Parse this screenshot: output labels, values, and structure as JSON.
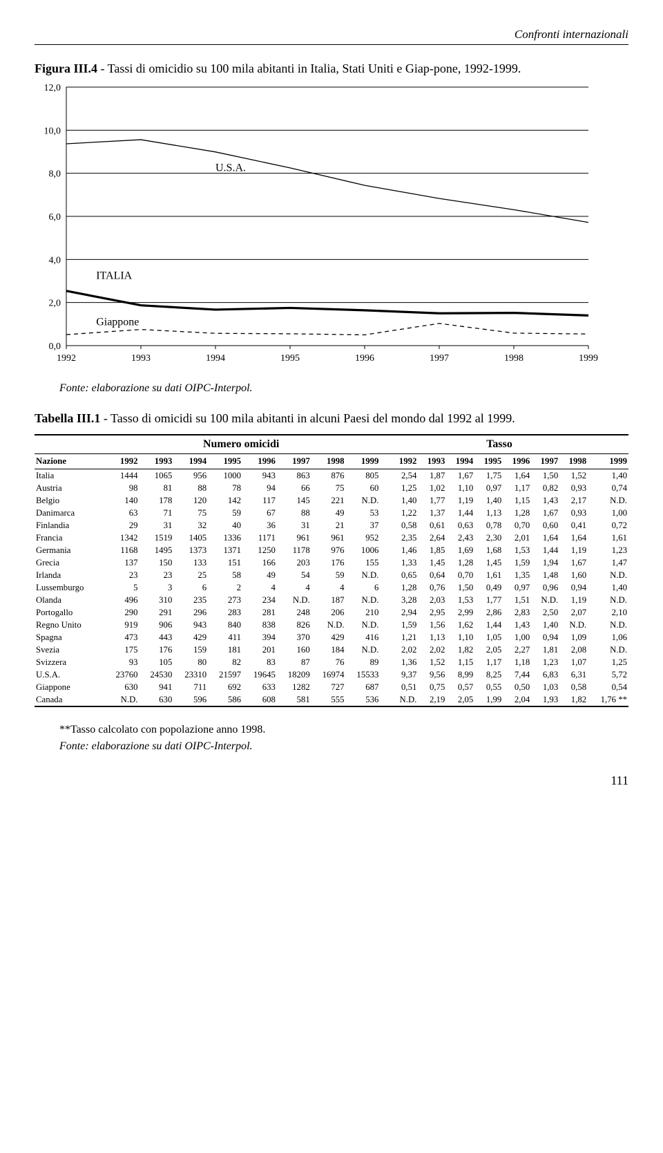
{
  "header": {
    "section": "Confronti internazionali"
  },
  "figure": {
    "label": "Figura III.4",
    "title_rest": " - Tassi di omicidio su 100 mila abitanti in Italia, Stati Uniti e Giap-pone, 1992-1999.",
    "caption": "Fonte: elaborazione su dati OIPC-Interpol.",
    "chart": {
      "type": "line",
      "years": [
        1992,
        1993,
        1994,
        1995,
        1996,
        1997,
        1998,
        1999
      ],
      "ylim": [
        0,
        12
      ],
      "ytick_step": 2,
      "ylabels": [
        "0,0",
        "2,0",
        "4,0",
        "6,0",
        "8,0",
        "10,0",
        "12,0"
      ],
      "series": [
        {
          "name": "U.S.A.",
          "label_x": 2,
          "label_y": 8.1,
          "values": [
            9.37,
            9.56,
            8.99,
            8.25,
            7.44,
            6.83,
            6.31,
            5.72
          ],
          "stroke": "#000000",
          "width": 1.3,
          "dash": ""
        },
        {
          "name": "ITALIA",
          "label_x": 0.4,
          "label_y": 3.1,
          "values": [
            2.54,
            1.87,
            1.67,
            1.75,
            1.64,
            1.5,
            1.52,
            1.4
          ],
          "stroke": "#000000",
          "width": 3.2,
          "dash": ""
        },
        {
          "name": "Giappone",
          "label_x": 0.4,
          "label_y": 0.95,
          "values": [
            0.51,
            0.75,
            0.57,
            0.55,
            0.5,
            1.03,
            0.58,
            0.54
          ],
          "stroke": "#000000",
          "width": 1.3,
          "dash": "6,5"
        }
      ],
      "grid_color": "#000000",
      "background": "#ffffff"
    }
  },
  "table": {
    "label": "Tabella III.1",
    "title_rest": " - Tasso di omicidi su 100 mila abitanti in alcuni Paesi del mondo dal 1992 al 1999.",
    "group_headers": [
      "Numero omicidi",
      "Tasso"
    ],
    "col_header": "Nazione",
    "years": [
      "1992",
      "1993",
      "1994",
      "1995",
      "1996",
      "1997",
      "1998",
      "1999"
    ],
    "rows": [
      {
        "n": "Italia",
        "a": [
          "1444",
          "1065",
          "956",
          "1000",
          "943",
          "863",
          "876",
          "805"
        ],
        "b": [
          "2,54",
          "1,87",
          "1,67",
          "1,75",
          "1,64",
          "1,50",
          "1,52",
          "1,40"
        ]
      },
      {
        "n": "Austria",
        "a": [
          "98",
          "81",
          "88",
          "78",
          "94",
          "66",
          "75",
          "60"
        ],
        "b": [
          "1,25",
          "1,02",
          "1,10",
          "0,97",
          "1,17",
          "0,82",
          "0,93",
          "0,74"
        ]
      },
      {
        "n": "Belgio",
        "a": [
          "140",
          "178",
          "120",
          "142",
          "117",
          "145",
          "221",
          "N.D."
        ],
        "b": [
          "1,40",
          "1,77",
          "1,19",
          "1,40",
          "1,15",
          "1,43",
          "2,17",
          "N.D."
        ]
      },
      {
        "n": "Danimarca",
        "a": [
          "63",
          "71",
          "75",
          "59",
          "67",
          "88",
          "49",
          "53"
        ],
        "b": [
          "1,22",
          "1,37",
          "1,44",
          "1,13",
          "1,28",
          "1,67",
          "0,93",
          "1,00"
        ]
      },
      {
        "n": "Finlandia",
        "a": [
          "29",
          "31",
          "32",
          "40",
          "36",
          "31",
          "21",
          "37"
        ],
        "b": [
          "0,58",
          "0,61",
          "0,63",
          "0,78",
          "0,70",
          "0,60",
          "0,41",
          "0,72"
        ]
      },
      {
        "n": "Francia",
        "a": [
          "1342",
          "1519",
          "1405",
          "1336",
          "1171",
          "961",
          "961",
          "952"
        ],
        "b": [
          "2,35",
          "2,64",
          "2,43",
          "2,30",
          "2,01",
          "1,64",
          "1,64",
          "1,61"
        ]
      },
      {
        "n": "Germania",
        "a": [
          "1168",
          "1495",
          "1373",
          "1371",
          "1250",
          "1178",
          "976",
          "1006"
        ],
        "b": [
          "1,46",
          "1,85",
          "1,69",
          "1,68",
          "1,53",
          "1,44",
          "1,19",
          "1,23"
        ]
      },
      {
        "n": "Grecia",
        "a": [
          "137",
          "150",
          "133",
          "151",
          "166",
          "203",
          "176",
          "155"
        ],
        "b": [
          "1,33",
          "1,45",
          "1,28",
          "1,45",
          "1,59",
          "1,94",
          "1,67",
          "1,47"
        ]
      },
      {
        "n": "Irlanda",
        "a": [
          "23",
          "23",
          "25",
          "58",
          "49",
          "54",
          "59",
          "N.D."
        ],
        "b": [
          "0,65",
          "0,64",
          "0,70",
          "1,61",
          "1,35",
          "1,48",
          "1,60",
          "N.D."
        ]
      },
      {
        "n": "Lussemburgo",
        "a": [
          "5",
          "3",
          "6",
          "2",
          "4",
          "4",
          "4",
          "6"
        ],
        "b": [
          "1,28",
          "0,76",
          "1,50",
          "0,49",
          "0,97",
          "0,96",
          "0,94",
          "1,40"
        ]
      },
      {
        "n": "Olanda",
        "a": [
          "496",
          "310",
          "235",
          "273",
          "234",
          "N.D.",
          "187",
          "N.D."
        ],
        "b": [
          "3,28",
          "2,03",
          "1,53",
          "1,77",
          "1,51",
          "N.D.",
          "1,19",
          "N.D."
        ]
      },
      {
        "n": "Portogallo",
        "a": [
          "290",
          "291",
          "296",
          "283",
          "281",
          "248",
          "206",
          "210"
        ],
        "b": [
          "2,94",
          "2,95",
          "2,99",
          "2,86",
          "2,83",
          "2,50",
          "2,07",
          "2,10"
        ]
      },
      {
        "n": "Regno Unito",
        "a": [
          "919",
          "906",
          "943",
          "840",
          "838",
          "826",
          "N.D.",
          "N.D."
        ],
        "b": [
          "1,59",
          "1,56",
          "1,62",
          "1,44",
          "1,43",
          "1,40",
          "N.D.",
          "N.D."
        ]
      },
      {
        "n": "Spagna",
        "a": [
          "473",
          "443",
          "429",
          "411",
          "394",
          "370",
          "429",
          "416"
        ],
        "b": [
          "1,21",
          "1,13",
          "1,10",
          "1,05",
          "1,00",
          "0,94",
          "1,09",
          "1,06"
        ]
      },
      {
        "n": "Svezia",
        "a": [
          "175",
          "176",
          "159",
          "181",
          "201",
          "160",
          "184",
          "N.D."
        ],
        "b": [
          "2,02",
          "2,02",
          "1,82",
          "2,05",
          "2,27",
          "1,81",
          "2,08",
          "N.D."
        ]
      },
      {
        "n": "Svizzera",
        "a": [
          "93",
          "105",
          "80",
          "82",
          "83",
          "87",
          "76",
          "89"
        ],
        "b": [
          "1,36",
          "1,52",
          "1,15",
          "1,17",
          "1,18",
          "1,23",
          "1,07",
          "1,25"
        ]
      },
      {
        "n": "U.S.A.",
        "a": [
          "23760",
          "24530",
          "23310",
          "21597",
          "19645",
          "18209",
          "16974",
          "15533"
        ],
        "b": [
          "9,37",
          "9,56",
          "8,99",
          "8,25",
          "7,44",
          "6,83",
          "6,31",
          "5,72"
        ]
      },
      {
        "n": "Giappone",
        "a": [
          "630",
          "941",
          "711",
          "692",
          "633",
          "1282",
          "727",
          "687"
        ],
        "b": [
          "0,51",
          "0,75",
          "0,57",
          "0,55",
          "0,50",
          "1,03",
          "0,58",
          "0,54"
        ]
      },
      {
        "n": "Canada",
        "a": [
          "N.D.",
          "630",
          "596",
          "586",
          "608",
          "581",
          "555",
          "536"
        ],
        "b": [
          "N.D.",
          "2,19",
          "2,05",
          "1,99",
          "2,04",
          "1,93",
          "1,82",
          "1,76 **"
        ]
      }
    ]
  },
  "footnote": {
    "note": "**Tasso calcolato con popolazione anno 1998.",
    "source": "Fonte: elaborazione su dati OIPC-Interpol."
  },
  "pagenum": "111"
}
